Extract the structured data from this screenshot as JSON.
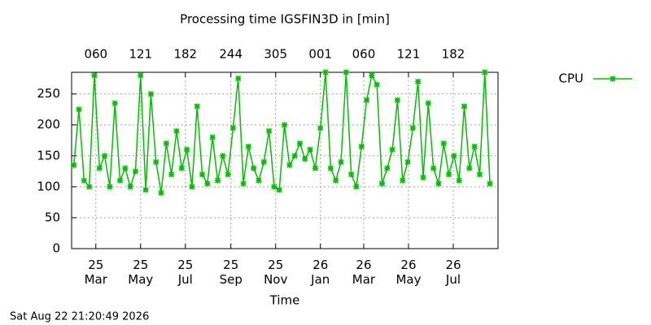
{
  "chart_data": {
    "type": "line",
    "title": "Processing time IGSFIN3D in [min]",
    "xlabel": "Time",
    "timestamp": "Sat Aug 22 21:20:49 2026",
    "legend": "top-right-outside",
    "grid": true,
    "xlim": [
      "2025-01-27",
      "2026-08-31"
    ],
    "ylim": [
      0,
      285
    ],
    "yticks": [
      0,
      50,
      100,
      150,
      200,
      250
    ],
    "xticks": [
      {
        "value": "2025-03-01",
        "label": "25 Mar"
      },
      {
        "value": "2025-05-01",
        "label": "25 May"
      },
      {
        "value": "2025-07-01",
        "label": "25 Jul"
      },
      {
        "value": "2025-09-01",
        "label": "25 Sep"
      },
      {
        "value": "2025-11-01",
        "label": "25 Nov"
      },
      {
        "value": "2026-01-01",
        "label": "26 Jan"
      },
      {
        "value": "2026-03-01",
        "label": "26 Mar"
      },
      {
        "value": "2026-05-01",
        "label": "26 May"
      },
      {
        "value": "2026-07-01",
        "label": "26 Jul"
      }
    ],
    "x2ticks": [
      {
        "value": "2025-03-01",
        "label": "060"
      },
      {
        "value": "2025-05-01",
        "label": "121"
      },
      {
        "value": "2025-07-01",
        "label": "182"
      },
      {
        "value": "2025-09-01",
        "label": "244"
      },
      {
        "value": "2025-11-01",
        "label": "305"
      },
      {
        "value": "2026-01-01",
        "label": "001"
      },
      {
        "value": "2026-03-01",
        "label": "060"
      },
      {
        "value": "2026-05-01",
        "label": "121"
      },
      {
        "value": "2026-07-01",
        "label": "182"
      }
    ],
    "x": [
      "2025-01-30",
      "2025-02-06",
      "2025-02-13",
      "2025-02-20",
      "2025-02-27",
      "2025-03-06",
      "2025-03-13",
      "2025-03-20",
      "2025-03-27",
      "2025-04-03",
      "2025-04-10",
      "2025-04-17",
      "2025-04-24",
      "2025-05-01",
      "2025-05-08",
      "2025-05-15",
      "2025-05-22",
      "2025-05-29",
      "2025-06-05",
      "2025-06-12",
      "2025-06-19",
      "2025-06-26",
      "2025-07-03",
      "2025-07-10",
      "2025-07-17",
      "2025-07-24",
      "2025-07-31",
      "2025-08-07",
      "2025-08-14",
      "2025-08-21",
      "2025-08-28",
      "2025-09-04",
      "2025-09-11",
      "2025-09-18",
      "2025-09-25",
      "2025-10-02",
      "2025-10-09",
      "2025-10-16",
      "2025-10-23",
      "2025-10-30",
      "2025-11-06",
      "2025-11-13",
      "2025-11-20",
      "2025-11-27",
      "2025-12-04",
      "2025-12-11",
      "2025-12-18",
      "2025-12-25",
      "2026-01-01",
      "2026-01-08",
      "2026-01-15",
      "2026-01-22",
      "2026-01-29",
      "2026-02-05",
      "2026-02-12",
      "2026-02-19",
      "2026-02-26",
      "2026-03-05",
      "2026-03-12",
      "2026-03-19",
      "2026-03-26",
      "2026-04-02",
      "2026-04-09",
      "2026-04-16",
      "2026-04-23",
      "2026-04-30",
      "2026-05-07",
      "2026-05-14",
      "2026-05-21",
      "2026-05-28",
      "2026-06-04",
      "2026-06-11",
      "2026-06-18",
      "2026-06-25",
      "2026-07-02",
      "2026-07-09",
      "2026-07-16",
      "2026-07-23",
      "2026-07-30",
      "2026-08-06",
      "2026-08-13",
      "2026-08-20"
    ],
    "series": [
      {
        "name": "CPU",
        "color": "#00c000",
        "values": [
          135,
          225,
          110,
          100,
          280,
          130,
          150,
          100,
          235,
          110,
          130,
          100,
          125,
          280,
          95,
          250,
          140,
          90,
          170,
          120,
          190,
          130,
          160,
          100,
          230,
          120,
          105,
          180,
          110,
          150,
          120,
          195,
          275,
          105,
          165,
          130,
          110,
          140,
          190,
          100,
          95,
          200,
          135,
          150,
          170,
          145,
          160,
          130,
          195,
          285,
          130,
          110,
          140,
          285,
          120,
          100,
          165,
          240,
          280,
          265,
          105,
          130,
          160,
          240,
          110,
          140,
          195,
          270,
          115,
          235,
          130,
          105,
          170,
          120,
          150,
          110,
          230,
          130,
          165,
          120,
          285,
          105
        ]
      }
    ]
  }
}
